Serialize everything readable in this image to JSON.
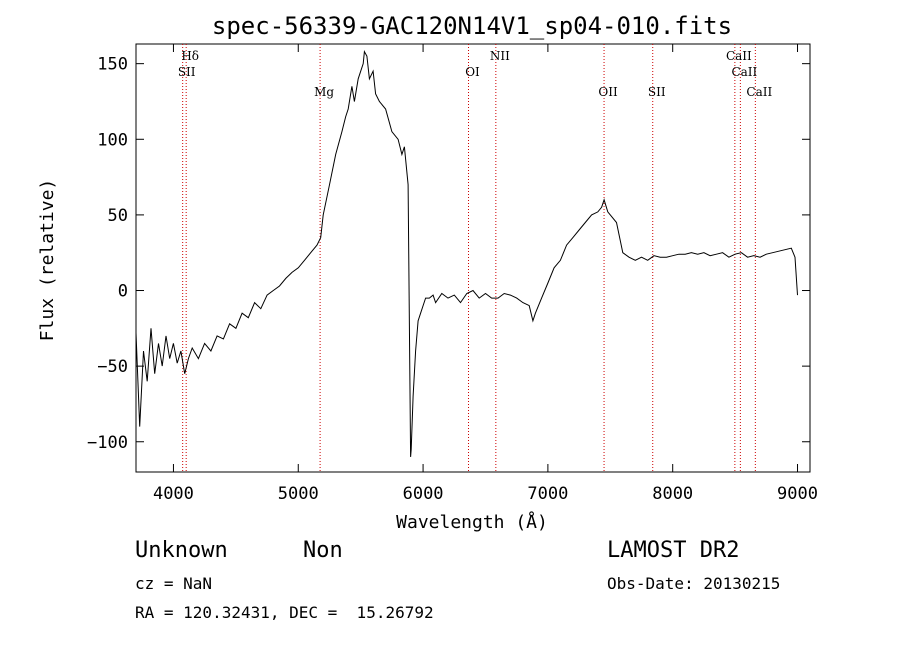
{
  "chart_data": {
    "type": "line",
    "title": "spec-56339-GAC120N14V1_sp04-010.fits",
    "xlabel": "Wavelength (Å)",
    "ylabel": "Flux (relative)",
    "xlim": [
      3700,
      9100
    ],
    "ylim": [
      -120,
      163
    ],
    "x_ticks": [
      4000,
      5000,
      6000,
      7000,
      8000,
      9000
    ],
    "x_tick_labels": [
      "4000",
      "5000",
      "6000",
      "7000",
      "8000",
      "9000"
    ],
    "y_ticks": [
      -100,
      -50,
      0,
      50,
      100,
      150
    ],
    "y_tick_labels": [
      "−100",
      "−50",
      "0",
      "50",
      "100",
      "150"
    ],
    "grid": false,
    "series": [
      {
        "color": "#000000",
        "x": [
          3700,
          3730,
          3760,
          3790,
          3820,
          3850,
          3880,
          3910,
          3940,
          3970,
          4000,
          4030,
          4060,
          4090,
          4120,
          4150,
          4200,
          4250,
          4300,
          4350,
          4400,
          4450,
          4500,
          4550,
          4600,
          4650,
          4700,
          4750,
          4800,
          4850,
          4900,
          4950,
          5000,
          5050,
          5100,
          5150,
          5180,
          5200,
          5250,
          5300,
          5350,
          5380,
          5400,
          5430,
          5450,
          5480,
          5500,
          5520,
          5530,
          5550,
          5570,
          5600,
          5620,
          5650,
          5700,
          5750,
          5800,
          5830,
          5850,
          5880,
          5900,
          5905,
          5920,
          5940,
          5960,
          5980,
          6000,
          6020,
          6050,
          6080,
          6100,
          6150,
          6200,
          6250,
          6300,
          6350,
          6400,
          6450,
          6500,
          6550,
          6600,
          6650,
          6700,
          6750,
          6800,
          6850,
          6880,
          6900,
          6950,
          7000,
          7050,
          7100,
          7150,
          7200,
          7250,
          7300,
          7350,
          7400,
          7430,
          7450,
          7480,
          7500,
          7550,
          7600,
          7650,
          7700,
          7750,
          7800,
          7850,
          7900,
          7950,
          8000,
          8050,
          8100,
          8150,
          8200,
          8250,
          8300,
          8350,
          8400,
          8450,
          8500,
          8550,
          8600,
          8650,
          8700,
          8750,
          8800,
          8850,
          8900,
          8950,
          8980,
          9000
        ],
        "y": [
          -28,
          -90,
          -40,
          -60,
          -25,
          -55,
          -35,
          -50,
          -30,
          -45,
          -35,
          -48,
          -40,
          -55,
          -45,
          -38,
          -45,
          -35,
          -40,
          -30,
          -32,
          -22,
          -25,
          -15,
          -18,
          -8,
          -12,
          -3,
          0,
          3,
          8,
          12,
          15,
          20,
          25,
          30,
          35,
          50,
          70,
          90,
          105,
          115,
          120,
          135,
          125,
          140,
          145,
          150,
          158,
          155,
          140,
          145,
          130,
          125,
          120,
          105,
          100,
          90,
          95,
          70,
          -110,
          -105,
          -70,
          -40,
          -20,
          -15,
          -10,
          -5,
          -5,
          -3,
          -8,
          -2,
          -5,
          -3,
          -8,
          -2,
          0,
          -5,
          -2,
          -5,
          -5,
          -2,
          -3,
          -5,
          -8,
          -10,
          -20,
          -15,
          -5,
          5,
          15,
          20,
          30,
          35,
          40,
          45,
          50,
          52,
          55,
          60,
          52,
          50,
          45,
          25,
          22,
          20,
          22,
          20,
          23,
          22,
          22,
          23,
          24,
          24,
          25,
          24,
          25,
          23,
          24,
          25,
          22,
          24,
          25,
          22,
          23,
          22,
          24,
          25,
          26,
          27,
          28,
          22,
          -3
        ]
      }
    ],
    "line_markers": [
      {
        "wavelength": 4102,
        "label": "Hδ",
        "row": 0
      },
      {
        "wavelength": 4074,
        "label": "SII",
        "row": 1
      },
      {
        "wavelength": 5175,
        "label": "Mg",
        "row": 3
      },
      {
        "wavelength": 6364,
        "label": "OI",
        "row": 2
      },
      {
        "wavelength": 6583,
        "label": "NII",
        "row": 0
      },
      {
        "wavelength": 7450,
        "label": "OII",
        "row": 3
      },
      {
        "wavelength": 7840,
        "label": "SII",
        "row": 3
      },
      {
        "wavelength": 8498,
        "label": "CaII",
        "row": 0
      },
      {
        "wavelength": 8542,
        "label": "CaII",
        "row": 1
      },
      {
        "wavelength": 8662,
        "label": "CaII",
        "row": 3
      }
    ],
    "marker_color": "#cc0000"
  },
  "info": {
    "object_class": "Unknown",
    "subclass": "Non",
    "survey": "LAMOST DR2",
    "cz": "cz = NaN",
    "obs_date": "Obs-Date: 20130215",
    "coords": "RA = 120.32431, DEC =  15.26792"
  }
}
